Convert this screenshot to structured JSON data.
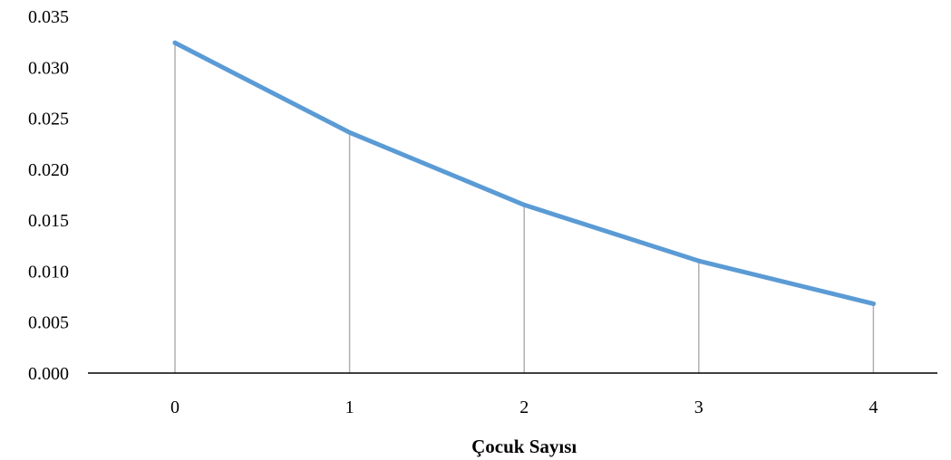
{
  "chart_data": {
    "type": "line",
    "title": "",
    "xlabel": "Çocuk Sayısı",
    "ylabel": "",
    "categories": [
      "0",
      "1",
      "2",
      "3",
      "4"
    ],
    "y_tick_labels": [
      "0.000",
      "0.005",
      "0.010",
      "0.015",
      "0.020",
      "0.025",
      "0.030",
      "0.035"
    ],
    "ylim": [
      0,
      0.035
    ],
    "grid": false,
    "drop_lines": true,
    "legend": "none",
    "series": [
      {
        "values": [
          0.0324,
          0.0236,
          0.0165,
          0.011,
          0.0068
        ]
      }
    ],
    "colors": {
      "line": "#5b9bd5",
      "drop_line": "#b0b0b0",
      "axis": "#000000"
    }
  }
}
